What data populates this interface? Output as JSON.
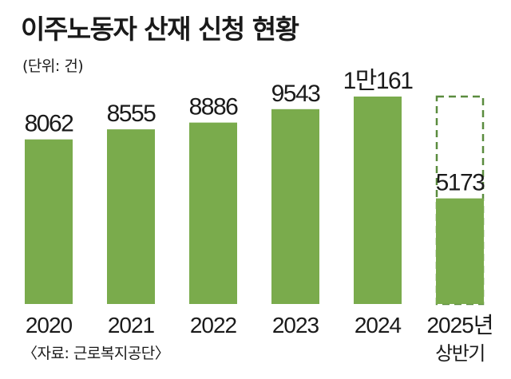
{
  "chart_data": {
    "type": "bar",
    "title": "이주노동자 산재 신청 현황",
    "unit_label": "(단위: 건)",
    "source": "〈자료: 근로복지공단〉",
    "categories": [
      "2020",
      "2021",
      "2022",
      "2023",
      "2024",
      "2025년 상반기"
    ],
    "category_lines": [
      [
        "2020"
      ],
      [
        "2021"
      ],
      [
        "2022"
      ],
      [
        "2023"
      ],
      [
        "2024"
      ],
      [
        "2025년",
        "상반기"
      ]
    ],
    "values": [
      8062,
      8555,
      8886,
      9543,
      10161,
      5173
    ],
    "value_labels": [
      "8062",
      "8555",
      "8886",
      "9543",
      "1만161",
      "5173"
    ],
    "partial_period_last": true,
    "ylim": [
      0,
      10161
    ],
    "bar_color": "#7aab4c",
    "dashed_color": "#5a8c3e",
    "text_color": "#1a1a1a"
  }
}
